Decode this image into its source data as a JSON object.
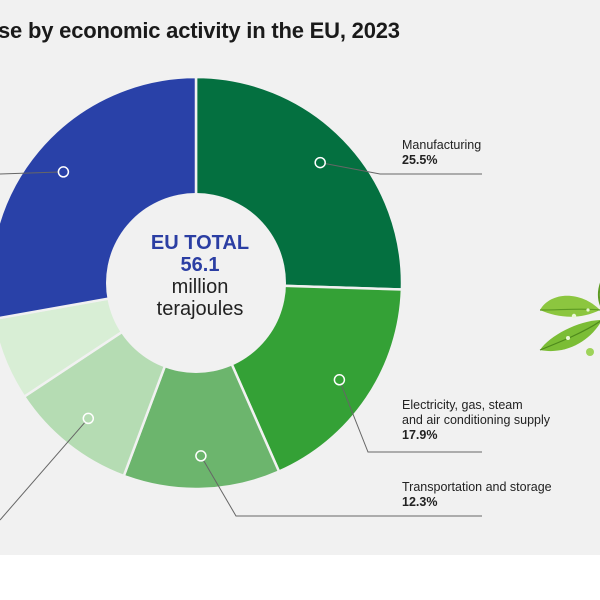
{
  "chart_data": {
    "type": "pie",
    "title": "se by economic activity in the EU, 2023",
    "total": {
      "line1": "EU TOTAL",
      "line2": "56.1",
      "line3": "million",
      "line4": "terajoules"
    },
    "slices": [
      {
        "name": "Manufacturing",
        "value": 25.5,
        "label": "25.5%",
        "color": "#047040"
      },
      {
        "name": "Electricity, gas, steam and air conditioning supply",
        "label_lines": [
          "Electricity, gas, steam",
          "and air conditioning supply"
        ],
        "value": 17.9,
        "label": "17.9%",
        "color": "#34a136"
      },
      {
        "name": "Transportation and storage",
        "value": 12.3,
        "label": "12.3%",
        "color": "#6cb56d"
      },
      {
        "name": "",
        "value": 10.0,
        "label": "",
        "color": "#b5dcb3"
      },
      {
        "name": "",
        "value": 6.5,
        "label": "",
        "color": "#d8eed5"
      },
      {
        "name": "",
        "value": 27.8,
        "label": "",
        "color": "#2941a8"
      }
    ],
    "legend": "callouts"
  },
  "colors": {
    "background": "#f1f1f1",
    "hole": "#f1f1f1",
    "leader": "#666666",
    "accent": "#2b3ea3"
  },
  "decoration": {
    "icon": "leaves-icon"
  }
}
